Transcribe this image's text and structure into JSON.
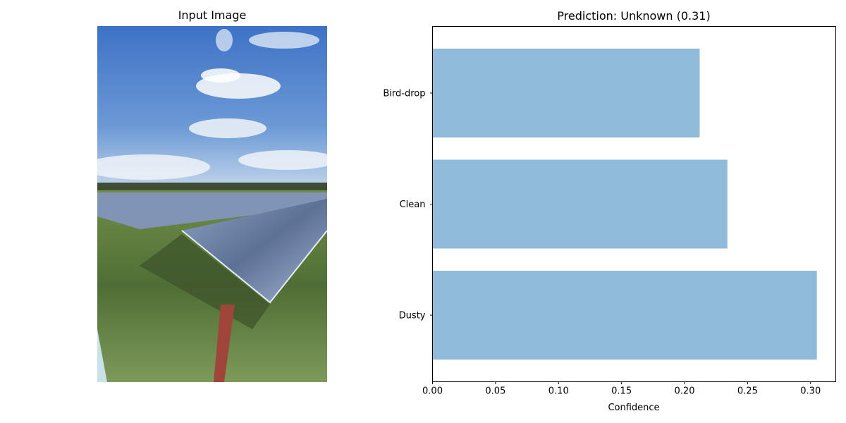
{
  "left_panel": {
    "title": "Input Image"
  },
  "chart_data": {
    "type": "bar",
    "orientation": "horizontal",
    "title": "Prediction: Unknown (0.31)",
    "xlabel": "Confidence",
    "ylabel": "",
    "categories": [
      "Bird-drop",
      "Clean",
      "Dusty"
    ],
    "values": [
      0.212,
      0.234,
      0.305
    ],
    "xlim": [
      0,
      0.32
    ],
    "xticks": [
      "0.00",
      "0.05",
      "0.10",
      "0.15",
      "0.20",
      "0.25",
      "0.30"
    ],
    "bar_color": "#8fbad9",
    "grid": false
  }
}
